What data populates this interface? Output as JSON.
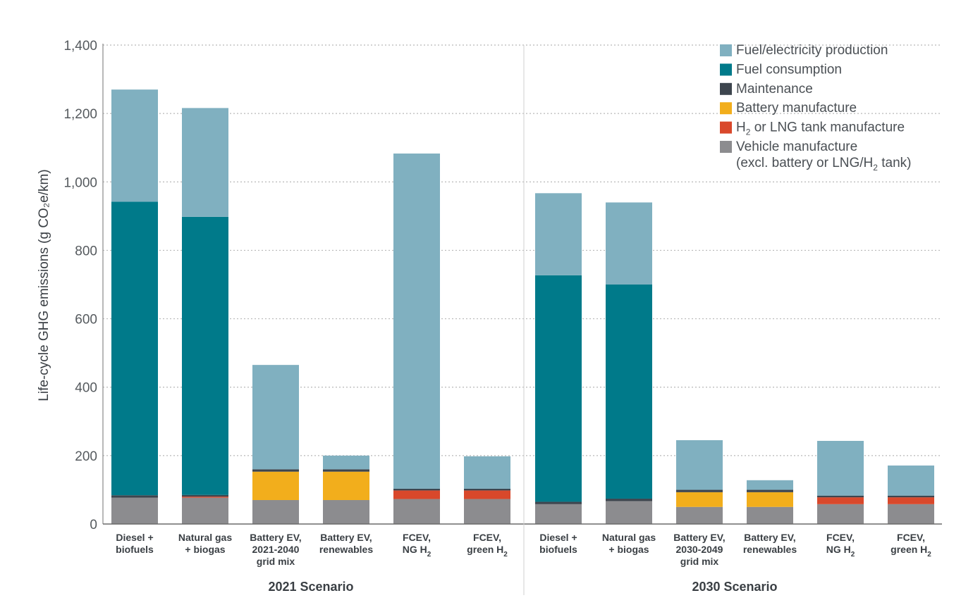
{
  "chart_data": {
    "type": "bar",
    "stacked": true,
    "ylabel": "Life-cycle GHG emissions (g CO₂e/km)",
    "ylim": [
      0,
      1400
    ],
    "yticks": [
      "0",
      "200",
      "400",
      "600",
      "800",
      "1,000",
      "1,200",
      "1,400"
    ],
    "ytick_values": [
      0,
      200,
      400,
      600,
      800,
      1000,
      1200,
      1400
    ],
    "grid": "horizontal dotted",
    "legend_position": "top-right",
    "groups": [
      "2021 Scenario",
      "2030 Scenario"
    ],
    "categories": [
      [
        "Diesel +",
        "biofuels"
      ],
      [
        "Natural gas",
        "+ biogas"
      ],
      [
        "Battery EV,",
        "2021-2040",
        "grid mix"
      ],
      [
        "Battery EV,",
        "renewables"
      ],
      [
        "FCEV,",
        "NG H₂"
      ],
      [
        "FCEV,",
        "green H₂"
      ],
      [
        "Diesel +",
        "biofuels"
      ],
      [
        "Natural gas",
        "+ biogas"
      ],
      [
        "Battery EV,",
        "2030-2049",
        "grid mix"
      ],
      [
        "Battery EV,",
        "renewables"
      ],
      [
        "FCEV,",
        "NG H₂"
      ],
      [
        "FCEV,",
        "green H₂"
      ]
    ],
    "series": [
      {
        "name": "Vehicle manufacture (excl. battery or LNG/H₂ tank)",
        "color": "#8c8c8f",
        "values": [
          77,
          77,
          70,
          70,
          73,
          73,
          58,
          67,
          50,
          50,
          58,
          58
        ]
      },
      {
        "name": "H₂ or LNG tank manufacture",
        "color": "#d9482b",
        "values": [
          0,
          3,
          0,
          0,
          25,
          25,
          0,
          0,
          0,
          0,
          20,
          20
        ]
      },
      {
        "name": "Battery manufacture",
        "color": "#f2ae1c",
        "values": [
          0,
          0,
          83,
          83,
          0,
          0,
          0,
          0,
          43,
          43,
          0,
          0
        ]
      },
      {
        "name": "Maintenance",
        "color": "#3d454e",
        "values": [
          7,
          5,
          7,
          7,
          5,
          5,
          7,
          7,
          7,
          7,
          5,
          5
        ]
      },
      {
        "name": "Fuel consumption",
        "color": "#007a8a",
        "values": [
          858,
          813,
          0,
          0,
          0,
          0,
          662,
          626,
          0,
          0,
          0,
          0
        ]
      },
      {
        "name": "Fuel/electricity production",
        "color": "#80b0c0",
        "values": [
          328,
          318,
          305,
          40,
          980,
          95,
          240,
          240,
          145,
          28,
          160,
          88
        ]
      }
    ],
    "legend": [
      {
        "label": "Fuel/electricity production",
        "color": "#80b0c0"
      },
      {
        "label": "Fuel consumption",
        "color": "#007a8a"
      },
      {
        "label": "Maintenance",
        "color": "#3d454e"
      },
      {
        "label": "Battery manufacture",
        "color": "#f2ae1c"
      },
      {
        "label_parts": [
          "H",
          "2",
          " or LNG tank manufacture"
        ],
        "label": "H₂ or LNG tank manufacture",
        "color": "#d9482b"
      },
      {
        "label": "Vehicle manufacture",
        "label2_parts": [
          "(excl. battery or LNG/H",
          "2",
          " tank)"
        ],
        "label2": "(excl. battery or LNG/H₂ tank)",
        "color": "#8c8c8f"
      }
    ]
  }
}
